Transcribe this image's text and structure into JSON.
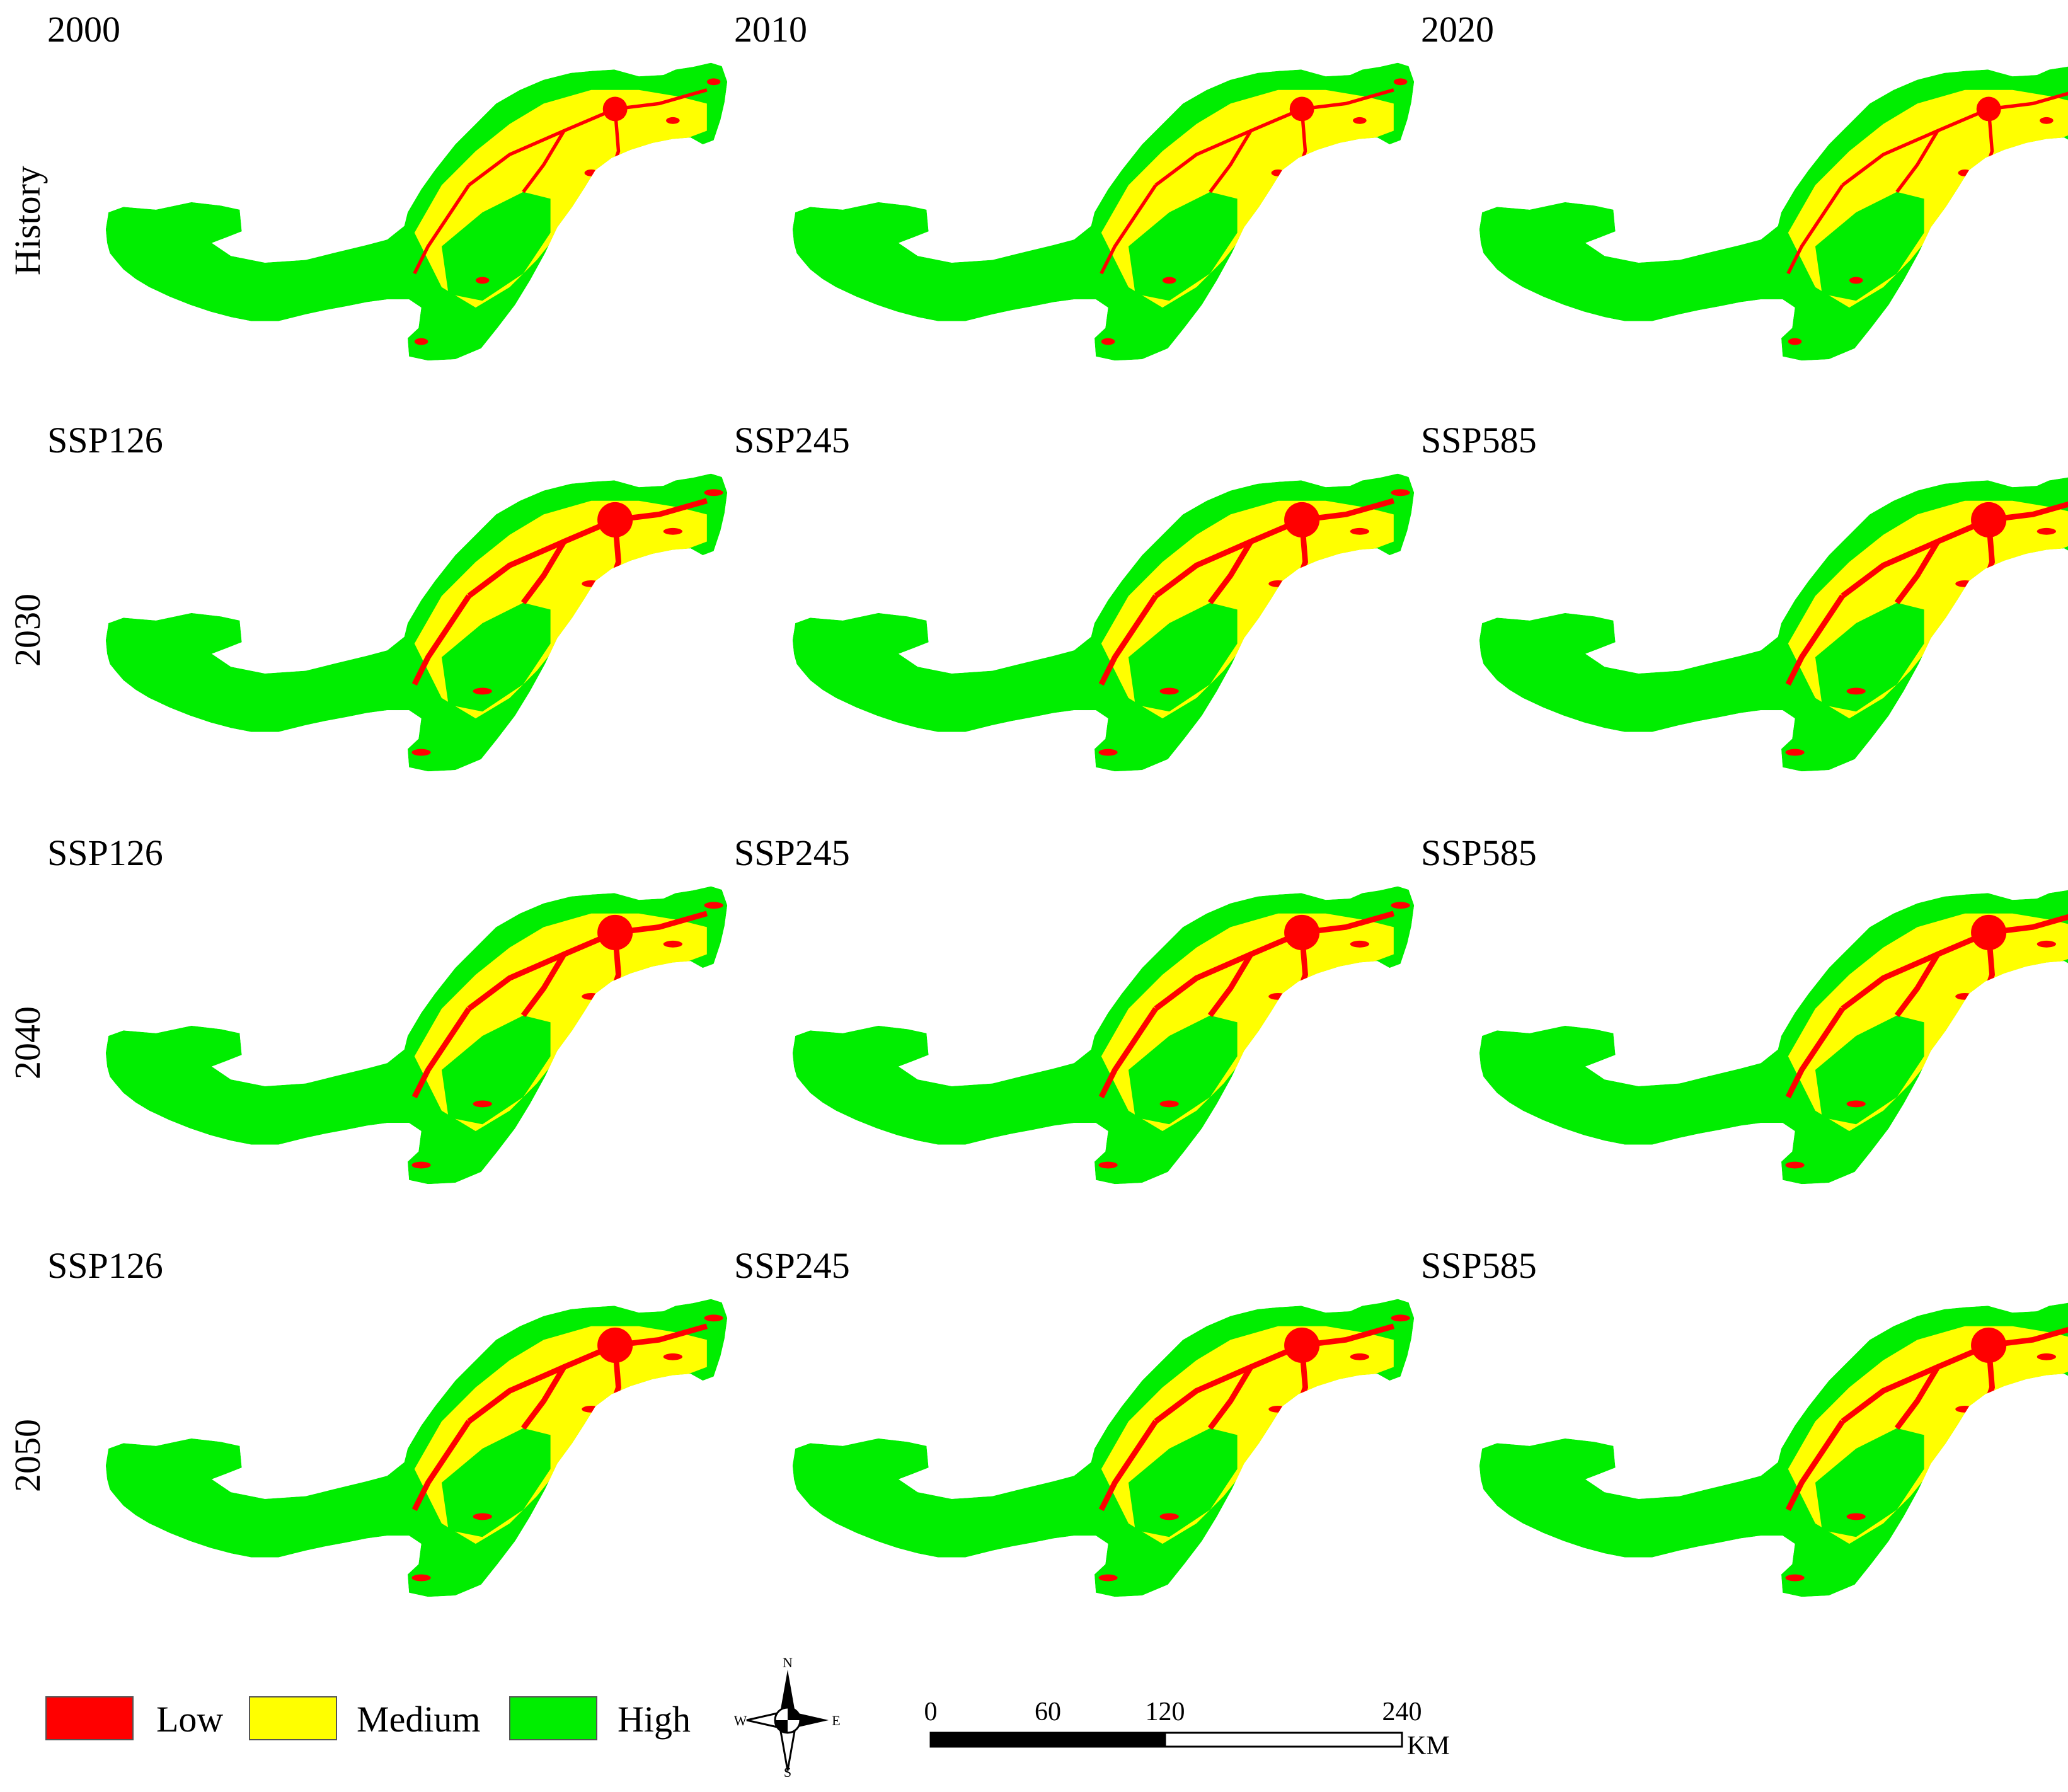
{
  "colors": {
    "low": "#ff0000",
    "medium": "#ffff00",
    "high": "#00ee00"
  },
  "row_labels": [
    "History",
    "2030",
    "2040",
    "2050"
  ],
  "panels": [
    {
      "title": "2000",
      "level": "low"
    },
    {
      "title": "2010",
      "level": "low"
    },
    {
      "title": "2020",
      "level": "low"
    },
    {
      "title": "SSP126",
      "level": "high"
    },
    {
      "title": "SSP245",
      "level": "high"
    },
    {
      "title": "SSP585",
      "level": "high"
    },
    {
      "title": "SSP126",
      "level": "high"
    },
    {
      "title": "SSP245",
      "level": "high"
    },
    {
      "title": "SSP585",
      "level": "high"
    },
    {
      "title": "SSP126",
      "level": "mid"
    },
    {
      "title": "SSP245",
      "level": "mid"
    },
    {
      "title": "SSP585",
      "level": "mid"
    }
  ],
  "legend": {
    "items": [
      {
        "label": "Low",
        "color": "#ff0000"
      },
      {
        "label": "Medium",
        "color": "#ffff00"
      },
      {
        "label": "High",
        "color": "#00ee00"
      }
    ]
  },
  "compass": {
    "n": "N",
    "s": "S",
    "e": "E",
    "w": "W"
  },
  "scale": {
    "ticks": [
      "0",
      "60",
      "120",
      "240"
    ],
    "unit": "KM"
  }
}
